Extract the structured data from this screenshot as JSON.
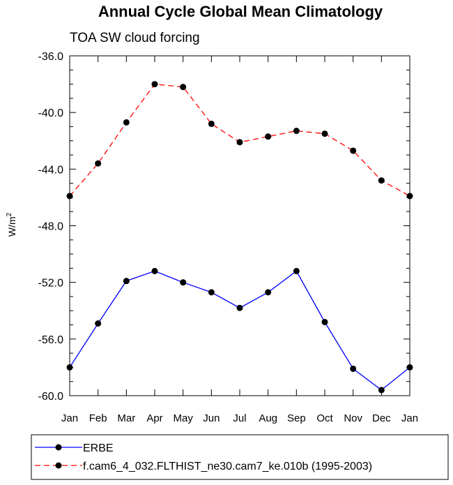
{
  "chart_data": {
    "type": "line",
    "title": "Annual Cycle Global Mean Climatology",
    "subtitle": "TOA SW cloud forcing",
    "xlabel": "",
    "ylabel": "W/m",
    "ylabel_superscript": "2",
    "categories": [
      "Jan",
      "Feb",
      "Mar",
      "Apr",
      "May",
      "Jun",
      "Jul",
      "Aug",
      "Sep",
      "Oct",
      "Nov",
      "Dec",
      "Jan"
    ],
    "ylim": [
      -60.0,
      -36.0
    ],
    "yticks": [
      -36.0,
      -40.0,
      -44.0,
      -48.0,
      -52.0,
      -56.0,
      -60.0
    ],
    "ytick_labels": [
      "-36.0",
      "-40.0",
      "-44.0",
      "-48.0",
      "-52.0",
      "-56.0",
      "-60.0"
    ],
    "series": [
      {
        "name": "ERBE",
        "color": "#0000ff",
        "dash": "solid",
        "values": [
          -58.0,
          -54.9,
          -51.9,
          -51.2,
          -52.0,
          -52.7,
          -53.8,
          -52.7,
          -51.2,
          -54.8,
          -58.1,
          -59.6,
          -58.0
        ]
      },
      {
        "name": "f.cam6_4_032.FLTHIST_ne30.cam7_ke.010b (1995-2003)",
        "color": "#ff0000",
        "dash": "dashed",
        "values": [
          -45.9,
          -43.6,
          -40.7,
          -38.0,
          -38.2,
          -40.8,
          -42.1,
          -41.7,
          -41.3,
          -41.5,
          -42.7,
          -44.8,
          -45.9
        ]
      }
    ]
  }
}
